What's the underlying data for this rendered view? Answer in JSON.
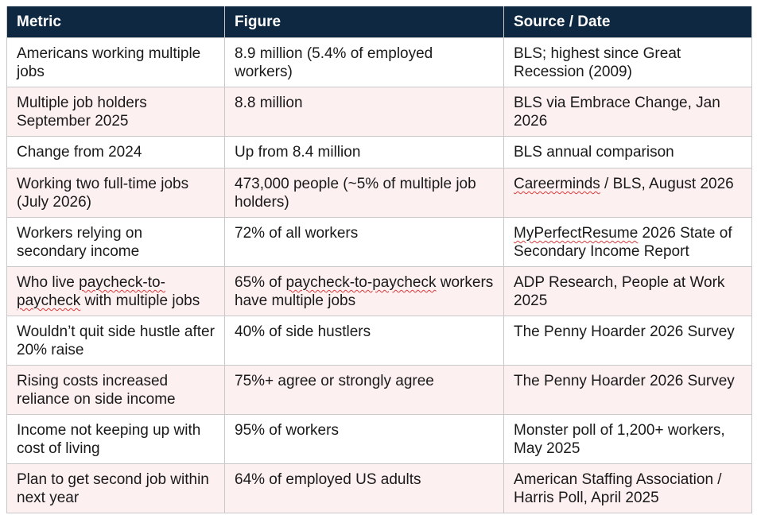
{
  "table": {
    "headers": [
      "Metric",
      "Figure",
      "Source / Date"
    ],
    "rows": [
      [
        "Americans working multiple jobs",
        "8.9 million (5.4% of employed workers)",
        "BLS; highest since Great Recession (2009)"
      ],
      [
        "Multiple job holders September 2025",
        "8.8 million",
        "BLS via Embrace Change, Jan 2026"
      ],
      [
        "Change from 2024",
        "Up from 8.4 million",
        "BLS annual comparison"
      ],
      [
        "Working two full-time jobs (July 2026)",
        "473,000 people (~5% of multiple job holders)",
        "Careerminds / BLS, August 2026"
      ],
      [
        "Workers relying on secondary income",
        "72% of all workers",
        "MyPerfectResume 2026 State of Secondary Income Report"
      ],
      [
        "Who live paycheck-to-paycheck with multiple jobs",
        "65% of paycheck-to-paycheck workers have multiple jobs",
        "ADP Research, People at Work 2025"
      ],
      [
        "Wouldn’t quit side hustle after 20% raise",
        "40% of side hustlers",
        "The Penny Hoarder 2026 Survey"
      ],
      [
        "Rising costs increased reliance on side income",
        "75%+ agree or strongly agree",
        "The Penny Hoarder 2026 Survey"
      ],
      [
        "Income not keeping up with cost of living",
        "95% of workers",
        "Monster poll of 1,200+ workers, May 2025"
      ],
      [
        "Plan to get second job within next year",
        "64% of employed US adults",
        "American Staffing Association / Harris Poll, April 2025"
      ]
    ]
  },
  "colors": {
    "header_bg": "#0e2841",
    "header_text": "#ffffff",
    "row_alt_bg": "#fdf0f0",
    "border": "#c8c8c8",
    "spellcheck_underline": "#d83b3b"
  }
}
